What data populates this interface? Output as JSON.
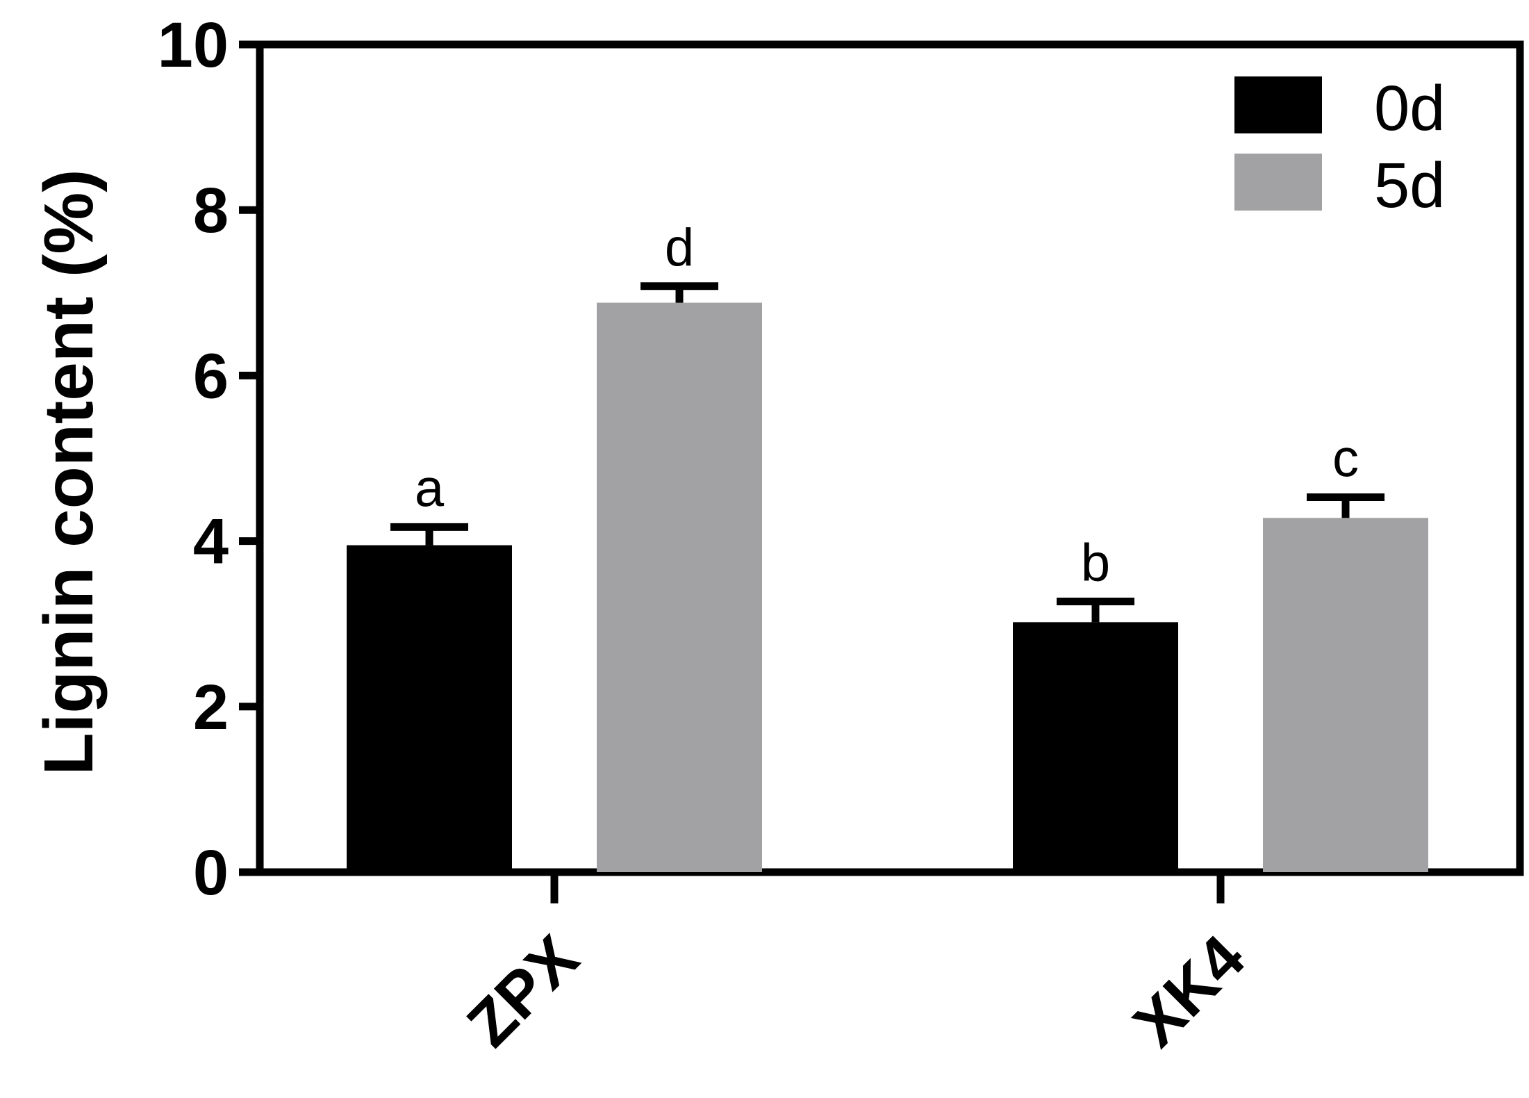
{
  "chart_data": {
    "type": "bar",
    "categories": [
      "ZPX",
      "XK4"
    ],
    "series": [
      {
        "name": "0d",
        "color": "#000000",
        "values": [
          3.95,
          3.02
        ],
        "errors": [
          0.22,
          0.25
        ],
        "labels": [
          "a",
          "b"
        ]
      },
      {
        "name": "5d",
        "color": "#a2a2a5",
        "values": [
          6.88,
          4.28
        ],
        "errors": [
          0.2,
          0.25
        ],
        "labels": [
          "d",
          "c"
        ]
      }
    ],
    "ylabel": "Lignin content (%)",
    "xlabel": "",
    "ylim": [
      0,
      10
    ],
    "yticks": [
      "0",
      "2",
      "4",
      "6",
      "8",
      "10"
    ],
    "grid": false,
    "legend_position": "top-right"
  }
}
